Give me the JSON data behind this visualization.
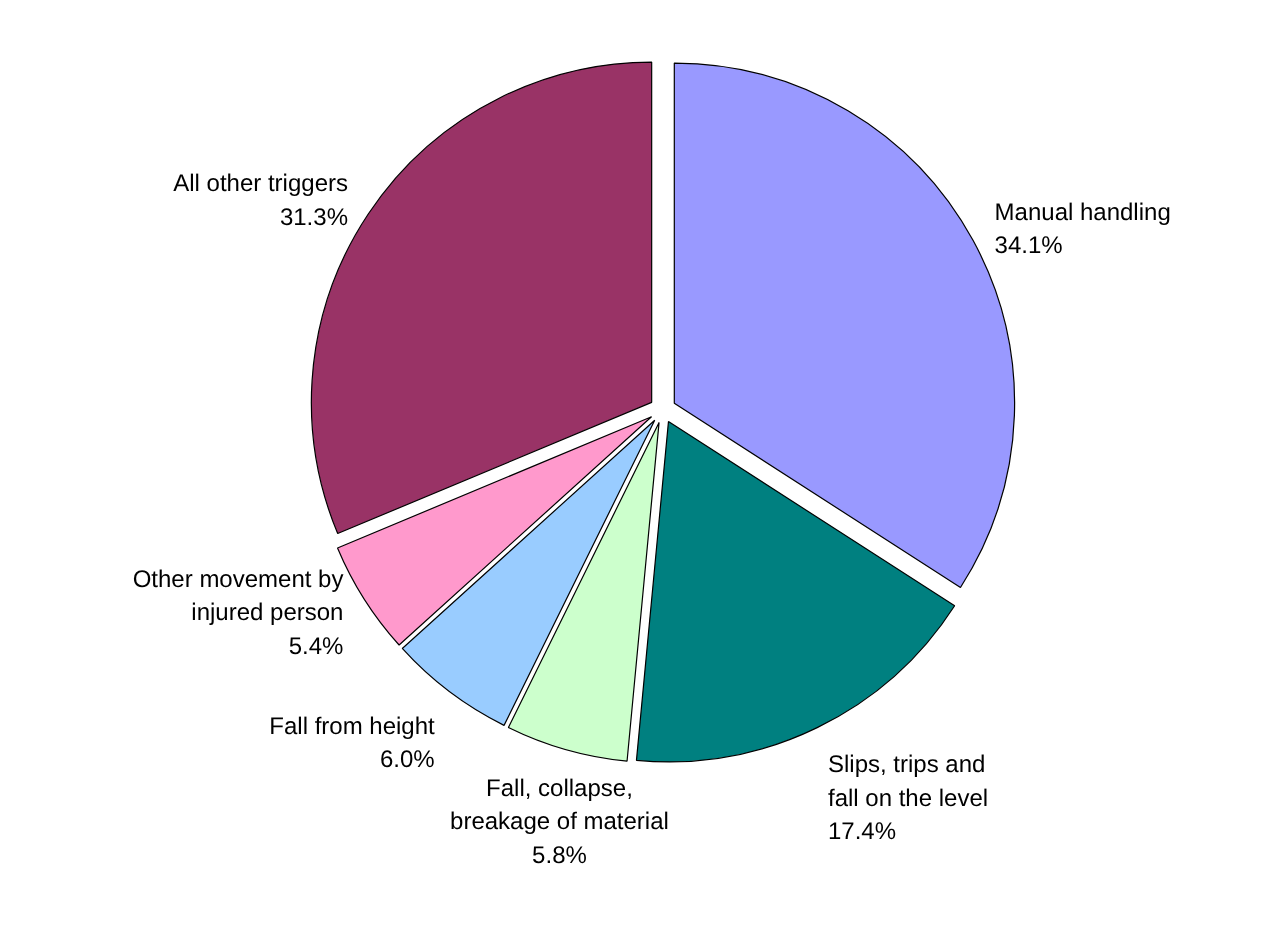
{
  "chart_data": {
    "type": "pie",
    "categories": [
      "Manual handling",
      "Slips, trips and fall on the level",
      "Fall, collapse, breakage of material",
      "Fall from height",
      "Other movement by injured person",
      "All other triggers"
    ],
    "values": [
      34.1,
      17.4,
      5.8,
      6.0,
      5.4,
      31.3
    ],
    "colors": [
      "#9999ff",
      "#008080",
      "#ccffcc",
      "#99ccff",
      "#ff99cc",
      "#993366"
    ],
    "value_labels": [
      "34.1%",
      "17.4%",
      "5.8%",
      "6.0%",
      "5.4%",
      "31.3%"
    ]
  }
}
